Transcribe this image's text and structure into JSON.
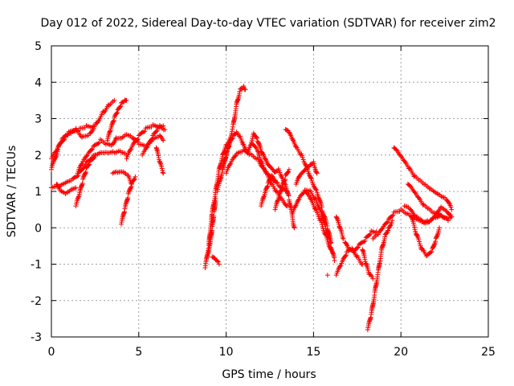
{
  "chart_data": {
    "type": "scatter",
    "title": "Day 012 of 2022, Sidereal Day-to-day VTEC variation (SDTVAR) for receiver zim2",
    "xlabel": "GPS time / hours",
    "ylabel": "SDTVAR / TECUs",
    "xlim": [
      0,
      25
    ],
    "ylim": [
      -3,
      5
    ],
    "xticks": [
      0,
      5,
      10,
      15,
      20,
      25
    ],
    "yticks": [
      -3,
      -2,
      -1,
      0,
      1,
      2,
      3,
      4,
      5
    ],
    "grid": true,
    "marker": "+",
    "series_color": "#ff0000",
    "series": [
      {
        "name": "s1",
        "x": [
          0.0,
          0.4,
          0.8,
          1.2,
          1.6,
          2.0,
          2.4
        ],
        "y": [
          1.6,
          2.2,
          2.5,
          2.6,
          2.7,
          2.8,
          2.8
        ]
      },
      {
        "name": "s2",
        "x": [
          0.0,
          0.3,
          0.6,
          1.0,
          1.4,
          1.8,
          2.2,
          2.6,
          3.0,
          3.3,
          3.6
        ],
        "y": [
          1.9,
          2.1,
          2.4,
          2.6,
          2.7,
          2.5,
          2.6,
          2.9,
          3.2,
          3.4,
          3.5
        ]
      },
      {
        "name": "s3",
        "x": [
          0.0,
          0.4,
          0.8,
          1.2,
          1.6,
          2.0,
          2.4,
          2.8,
          3.2,
          3.6,
          4.0,
          4.3
        ],
        "y": [
          1.1,
          1.1,
          1.2,
          1.3,
          1.5,
          1.8,
          2.0,
          2.1,
          2.1,
          2.1,
          2.1,
          2.0
        ]
      },
      {
        "name": "s4",
        "x": [
          0.3,
          0.5,
          0.8,
          1.1,
          1.4
        ],
        "y": [
          1.2,
          1.0,
          0.9,
          1.0,
          1.1
        ]
      },
      {
        "name": "s5",
        "x": [
          1.4,
          1.6,
          1.8,
          2.0,
          2.2,
          2.5
        ],
        "y": [
          0.6,
          0.9,
          1.3,
          1.6,
          1.8,
          2.0
        ]
      },
      {
        "name": "s6",
        "x": [
          1.5,
          1.8,
          2.1,
          2.4,
          2.8,
          3.2,
          3.5,
          3.7,
          4.0,
          4.3,
          4.6,
          5.0,
          5.4,
          5.8,
          6.2,
          6.4
        ],
        "y": [
          1.5,
          1.8,
          2.0,
          2.2,
          2.4,
          2.3,
          2.3,
          2.5,
          2.5,
          2.6,
          2.5,
          2.3,
          2.2,
          2.4,
          2.5,
          2.4
        ]
      },
      {
        "name": "s7",
        "x": [
          3.2,
          3.4,
          3.6,
          3.8,
          4.0,
          4.2,
          4.3
        ],
        "y": [
          2.4,
          2.7,
          3.0,
          3.2,
          3.4,
          3.5,
          3.5
        ]
      },
      {
        "name": "s8",
        "x": [
          3.5,
          3.8,
          4.1,
          4.4,
          4.6
        ],
        "y": [
          1.5,
          1.5,
          1.5,
          1.4,
          1.2
        ]
      },
      {
        "name": "s9",
        "x": [
          4.0,
          4.2,
          4.4,
          4.6,
          4.8
        ],
        "y": [
          0.1,
          0.5,
          0.9,
          1.2,
          1.4
        ]
      },
      {
        "name": "s10",
        "x": [
          4.3,
          4.6,
          5.0,
          5.4,
          5.8,
          6.2,
          6.5
        ],
        "y": [
          1.9,
          2.2,
          2.5,
          2.7,
          2.8,
          2.8,
          2.7
        ]
      },
      {
        "name": "s11",
        "x": [
          5.2,
          5.5,
          5.8,
          6.1,
          6.4
        ],
        "y": [
          2.0,
          2.2,
          2.5,
          2.7,
          2.8
        ]
      },
      {
        "name": "s12",
        "x": [
          6.0,
          6.2,
          6.4
        ],
        "y": [
          2.2,
          1.8,
          1.5
        ]
      },
      {
        "name": "s13",
        "x": [
          8.8,
          9.0,
          9.2,
          9.4,
          9.6,
          9.8,
          10.0,
          10.2
        ],
        "y": [
          -1.1,
          -0.5,
          0.4,
          1.0,
          1.6,
          2.0,
          2.3,
          2.3
        ]
      },
      {
        "name": "s14",
        "x": [
          9.0,
          9.1,
          9.2,
          9.3,
          9.4
        ],
        "y": [
          -0.7,
          -0.4,
          0.0,
          0.4,
          0.8
        ]
      },
      {
        "name": "s15",
        "x": [
          9.2,
          9.4,
          9.6
        ],
        "y": [
          -0.8,
          -0.9,
          -1.0
        ]
      },
      {
        "name": "s16",
        "x": [
          9.5,
          9.8,
          10.1,
          10.4,
          10.6,
          10.8,
          11.0,
          11.1
        ],
        "y": [
          1.0,
          1.6,
          2.2,
          2.8,
          3.4,
          3.8,
          3.9,
          3.8
        ]
      },
      {
        "name": "s17",
        "x": [
          9.8,
          10.0,
          10.2,
          10.4,
          10.6,
          10.8,
          11.0,
          11.2,
          11.4,
          11.6,
          11.8,
          12.0,
          12.2,
          12.4,
          12.6,
          12.8,
          13.0,
          13.2,
          13.4,
          13.6,
          13.9
        ],
        "y": [
          1.6,
          2.0,
          2.3,
          2.5,
          2.6,
          2.5,
          2.3,
          2.1,
          2.3,
          2.6,
          2.4,
          2.1,
          1.9,
          1.7,
          1.6,
          1.5,
          1.6,
          1.4,
          1.2,
          0.8,
          0.0
        ]
      },
      {
        "name": "s18",
        "x": [
          10.0,
          10.3,
          10.6,
          11.0,
          11.4,
          11.8,
          12.2,
          12.6,
          13.0,
          13.4
        ],
        "y": [
          1.5,
          1.8,
          2.0,
          2.1,
          2.0,
          1.9,
          1.6,
          1.4,
          1.2,
          1.0
        ]
      },
      {
        "name": "s19",
        "x": [
          11.5,
          11.8,
          12.0,
          12.3,
          12.6,
          12.9,
          13.2,
          13.5
        ],
        "y": [
          2.3,
          2.1,
          1.8,
          1.5,
          1.2,
          1.0,
          0.8,
          0.6
        ]
      },
      {
        "name": "s20",
        "x": [
          12.0,
          12.2,
          12.4,
          12.6,
          12.8
        ],
        "y": [
          0.6,
          0.9,
          1.2,
          1.4,
          1.3
        ]
      },
      {
        "name": "s21",
        "x": [
          12.8,
          13.0,
          13.2,
          13.4,
          13.6
        ],
        "y": [
          0.5,
          0.8,
          1.1,
          1.4,
          1.6
        ]
      },
      {
        "name": "s22",
        "x": [
          13.4,
          13.6,
          13.8,
          14.0,
          14.3,
          14.6,
          14.9,
          15.2,
          15.5,
          15.8,
          16.0
        ],
        "y": [
          2.7,
          2.6,
          2.4,
          2.2,
          2.0,
          1.7,
          1.3,
          1.0,
          0.5,
          0.0,
          -0.4
        ]
      },
      {
        "name": "s23",
        "x": [
          14.0,
          14.2,
          14.4,
          14.6,
          14.8,
          15.0,
          15.2
        ],
        "y": [
          1.2,
          1.4,
          1.5,
          1.6,
          1.7,
          1.8,
          1.5
        ]
      },
      {
        "name": "s24",
        "x": [
          13.8,
          14.0,
          14.2,
          14.5,
          14.8,
          15.1,
          15.4,
          15.7,
          16.0,
          16.2
        ],
        "y": [
          0.4,
          0.6,
          0.8,
          1.0,
          1.0,
          0.8,
          0.5,
          0.0,
          -0.5,
          -0.9
        ]
      },
      {
        "name": "s25",
        "x": [
          14.5,
          14.8,
          15.1,
          15.4,
          15.7,
          16.0
        ],
        "y": [
          1.0,
          0.8,
          0.5,
          0.2,
          -0.2,
          -0.6
        ]
      },
      {
        "name": "s26",
        "x": [
          15.8
        ],
        "y": [
          -1.3
        ]
      },
      {
        "name": "s27",
        "x": [
          16.3,
          16.5,
          16.7
        ],
        "y": [
          0.3,
          0.0,
          -0.3
        ]
      },
      {
        "name": "s28",
        "x": [
          16.3,
          16.6,
          16.9,
          17.2,
          17.5,
          17.8
        ],
        "y": [
          -1.3,
          -1.0,
          -0.7,
          -0.6,
          -0.8,
          -1.0
        ]
      },
      {
        "name": "s29",
        "x": [
          16.8,
          17.0,
          17.3,
          17.6,
          18.0,
          18.3,
          18.6
        ],
        "y": [
          -0.4,
          -0.6,
          -0.7,
          -0.5,
          -0.3,
          -0.1,
          -0.1
        ]
      },
      {
        "name": "s30",
        "x": [
          17.8,
          18.0,
          18.2,
          18.4
        ],
        "y": [
          -0.6,
          -1.0,
          -1.3,
          -1.4
        ]
      },
      {
        "name": "s31",
        "x": [
          18.1,
          18.3,
          18.5,
          18.7,
          18.9,
          19.1,
          19.3,
          19.5
        ],
        "y": [
          -2.8,
          -2.4,
          -1.8,
          -1.2,
          -0.6,
          -0.2,
          0.0,
          0.2
        ]
      },
      {
        "name": "s32",
        "x": [
          18.4,
          18.7,
          19.0,
          19.3,
          19.6,
          20.0,
          20.4,
          20.8,
          21.2,
          21.6,
          22.0,
          22.4,
          22.7
        ],
        "y": [
          -0.3,
          -0.2,
          0.0,
          0.2,
          0.4,
          0.5,
          0.4,
          0.3,
          0.2,
          0.2,
          0.3,
          0.3,
          0.2
        ]
      },
      {
        "name": "s33",
        "x": [
          19.6,
          19.9,
          20.2,
          20.5,
          20.8,
          21.1,
          21.4,
          21.7,
          22.0,
          22.3,
          22.6,
          22.9
        ],
        "y": [
          2.2,
          2.0,
          1.8,
          1.6,
          1.4,
          1.3,
          1.2,
          1.1,
          1.0,
          0.9,
          0.8,
          0.5
        ]
      },
      {
        "name": "s34",
        "x": [
          20.4,
          20.7,
          21.0,
          21.3,
          21.6,
          21.9,
          22.2,
          22.5,
          22.9
        ],
        "y": [
          1.2,
          1.0,
          0.8,
          0.6,
          0.5,
          0.4,
          0.4,
          0.3,
          0.3
        ]
      },
      {
        "name": "s35",
        "x": [
          20.6,
          20.9,
          21.2,
          21.5,
          21.8,
          22.0,
          22.2
        ],
        "y": [
          0.3,
          -0.2,
          -0.6,
          -0.8,
          -0.6,
          -0.3,
          0.0
        ]
      },
      {
        "name": "s36",
        "x": [
          20.2,
          20.5,
          20.8,
          21.1,
          21.4,
          21.7,
          22.0,
          22.3,
          22.6,
          22.9
        ],
        "y": [
          0.6,
          0.5,
          0.3,
          0.2,
          0.1,
          0.2,
          0.4,
          0.6,
          0.5,
          0.3
        ]
      }
    ]
  }
}
